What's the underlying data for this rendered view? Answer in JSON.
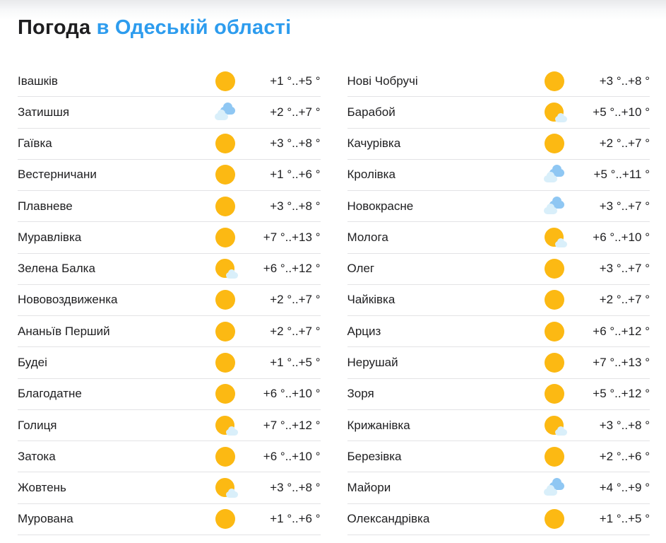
{
  "title": {
    "prefix": "Погода",
    "region": "в Одеській області"
  },
  "colors": {
    "accent-blue": "#2d9cee",
    "text-dark": "#1e1e20",
    "divider": "#e3e3e5",
    "sun": "#fcb913",
    "cloud-blue": "#8fc7f3",
    "cloud-light": "#d9effa"
  },
  "icon_legend": {
    "sunny": "sun-icon",
    "partly": "sun-behind-cloud-icon",
    "cloudy": "clouds-icon"
  },
  "columns": [
    {
      "rows": [
        {
          "name": "Івашків",
          "icon": "sunny",
          "temp": "+1 °..+5 °"
        },
        {
          "name": "Затишшя",
          "icon": "cloudy",
          "temp": "+2 °..+7 °"
        },
        {
          "name": "Гаївка",
          "icon": "sunny",
          "temp": "+3 °..+8 °"
        },
        {
          "name": "Вестерничани",
          "icon": "sunny",
          "temp": "+1 °..+6 °"
        },
        {
          "name": "Плавневе",
          "icon": "sunny",
          "temp": "+3 °..+8 °"
        },
        {
          "name": "Муравлівка",
          "icon": "sunny",
          "temp": "+7 °..+13 °"
        },
        {
          "name": "Зелена Балка",
          "icon": "partly",
          "temp": "+6 °..+12 °"
        },
        {
          "name": "Нововоздвиженка",
          "icon": "sunny",
          "temp": "+2 °..+7 °"
        },
        {
          "name": "Ананьїв Перший",
          "icon": "sunny",
          "temp": "+2 °..+7 °"
        },
        {
          "name": "Будеі",
          "icon": "sunny",
          "temp": "+1 °..+5 °"
        },
        {
          "name": "Благодатне",
          "icon": "sunny",
          "temp": "+6 °..+10 °"
        },
        {
          "name": "Голиця",
          "icon": "partly",
          "temp": "+7 °..+12 °"
        },
        {
          "name": "Затока",
          "icon": "sunny",
          "temp": "+6 °..+10 °"
        },
        {
          "name": "Жовтень",
          "icon": "partly",
          "temp": "+3 °..+8 °"
        },
        {
          "name": "Мурована",
          "icon": "sunny",
          "temp": "+1 °..+6 °"
        }
      ]
    },
    {
      "rows": [
        {
          "name": "Нові Чобручі",
          "icon": "sunny",
          "temp": "+3 °..+8 °"
        },
        {
          "name": "Барабой",
          "icon": "partly",
          "temp": "+5 °..+10 °"
        },
        {
          "name": "Качурівка",
          "icon": "sunny",
          "temp": "+2 °..+7 °"
        },
        {
          "name": "Кролівка",
          "icon": "cloudy",
          "temp": "+5 °..+11 °"
        },
        {
          "name": "Новокрасне",
          "icon": "cloudy",
          "temp": "+3 °..+7 °"
        },
        {
          "name": "Молога",
          "icon": "partly",
          "temp": "+6 °..+10 °"
        },
        {
          "name": "Олег",
          "icon": "sunny",
          "temp": "+3 °..+7 °"
        },
        {
          "name": "Чайківка",
          "icon": "sunny",
          "temp": "+2 °..+7 °"
        },
        {
          "name": "Арциз",
          "icon": "sunny",
          "temp": "+6 °..+12 °"
        },
        {
          "name": "Нерушай",
          "icon": "sunny",
          "temp": "+7 °..+13 °"
        },
        {
          "name": "Зоря",
          "icon": "sunny",
          "temp": "+5 °..+12 °"
        },
        {
          "name": "Крижанівка",
          "icon": "partly",
          "temp": "+3 °..+8 °"
        },
        {
          "name": "Березівка",
          "icon": "sunny",
          "temp": "+2 °..+6 °"
        },
        {
          "name": "Майори",
          "icon": "cloudy",
          "temp": "+4 °..+9 °"
        },
        {
          "name": "Олександрівка",
          "icon": "sunny",
          "temp": "+1 °..+5 °"
        }
      ]
    }
  ]
}
